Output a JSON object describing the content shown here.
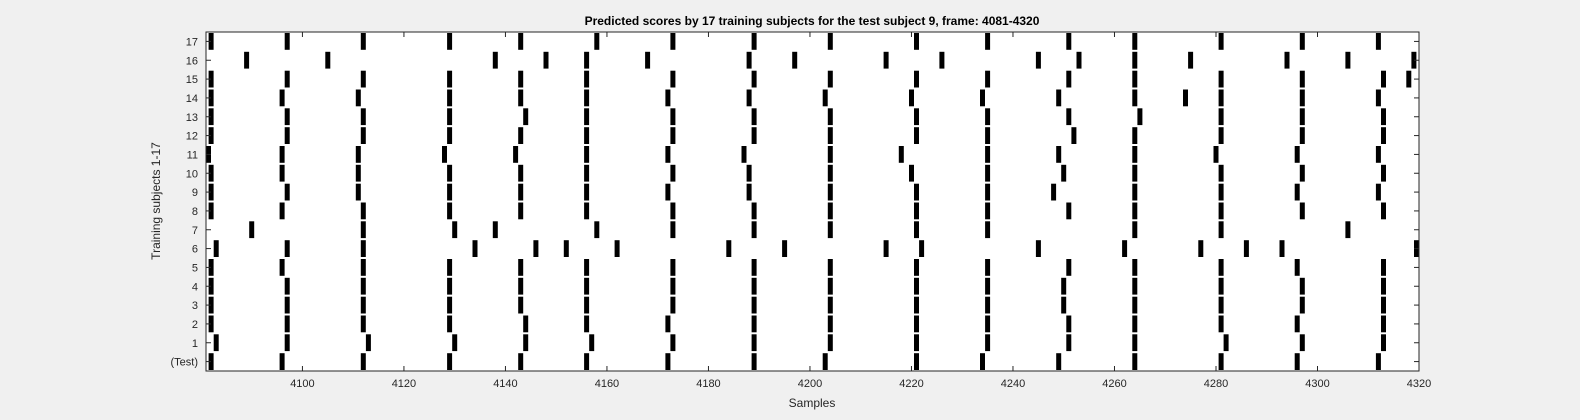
{
  "chart_data": {
    "type": "raster",
    "title": "Predicted scores by 17 training subjects for the test subject 9, frame: 4081-4320",
    "xlabel": "Samples",
    "ylabel": "Training subjects 1-17",
    "xlim": [
      4081,
      4320
    ],
    "x_ticks": [
      4100,
      4120,
      4140,
      4160,
      4180,
      4200,
      4220,
      4240,
      4260,
      4280,
      4300,
      4320
    ],
    "rows": [
      "(Test)",
      "1",
      "2",
      "3",
      "4",
      "5",
      "6",
      "7",
      "8",
      "9",
      "10",
      "11",
      "12",
      "13",
      "14",
      "15",
      "16",
      "17"
    ],
    "grid": false,
    "colors": {
      "background": "#f0f0f0",
      "axes": "#ffffff",
      "mark": "#000000",
      "text": "#262626"
    },
    "events": [
      [
        4082,
        4096,
        4112,
        4129,
        4143,
        4156,
        4172,
        4189,
        4203,
        4221,
        4234,
        4249,
        4264,
        4281,
        4296,
        4312
      ],
      [
        4083,
        4097,
        4113,
        4130,
        4144,
        4157,
        4173,
        4189,
        4204,
        4221,
        4235,
        4251,
        4264,
        4282,
        4297,
        4313
      ],
      [
        4082,
        4097,
        4112,
        4129,
        4144,
        4156,
        4172,
        4189,
        4204,
        4221,
        4235,
        4251,
        4264,
        4281,
        4296,
        4313
      ],
      [
        4082,
        4097,
        4112,
        4129,
        4143,
        4156,
        4173,
        4189,
        4204,
        4221,
        4235,
        4250,
        4264,
        4281,
        4297,
        4313
      ],
      [
        4082,
        4097,
        4112,
        4129,
        4143,
        4156,
        4173,
        4189,
        4204,
        4221,
        4235,
        4250,
        4264,
        4281,
        4297,
        4313
      ],
      [
        4082,
        4096,
        4112,
        4129,
        4143,
        4156,
        4173,
        4189,
        4204,
        4221,
        4235,
        4251,
        4264,
        4281,
        4296,
        4313
      ],
      [
        4083,
        4097,
        4112,
        4134,
        4146,
        4152,
        4162,
        4184,
        4195,
        4215,
        4222,
        4245,
        4262,
        4277,
        4286,
        4293,
        4320
      ],
      [
        4090,
        4112,
        4130,
        4138,
        4158,
        4173,
        4189,
        4204,
        4221,
        4235,
        4264,
        4281,
        4306
      ],
      [
        4082,
        4096,
        4112,
        4129,
        4143,
        4156,
        4173,
        4189,
        4204,
        4221,
        4235,
        4251,
        4264,
        4281,
        4297,
        4313
      ],
      [
        4082,
        4097,
        4111,
        4129,
        4143,
        4156,
        4172,
        4188,
        4204,
        4221,
        4235,
        4248,
        4264,
        4281,
        4296,
        4312
      ],
      [
        4082,
        4096,
        4111,
        4129,
        4143,
        4156,
        4173,
        4188,
        4204,
        4220,
        4235,
        4250,
        4264,
        4281,
        4297,
        4313
      ],
      [
        4081,
        4096,
        4111,
        4128,
        4142,
        4156,
        4172,
        4187,
        4204,
        4218,
        4235,
        4249,
        4264,
        4280,
        4296,
        4312
      ],
      [
        4082,
        4097,
        4112,
        4129,
        4143,
        4156,
        4173,
        4189,
        4204,
        4221,
        4235,
        4252,
        4264,
        4281,
        4297,
        4313
      ],
      [
        4082,
        4097,
        4112,
        4129,
        4144,
        4156,
        4173,
        4189,
        4204,
        4221,
        4235,
        4251,
        4265,
        4281,
        4297,
        4313
      ],
      [
        4082,
        4096,
        4111,
        4129,
        4143,
        4156,
        4172,
        4188,
        4203,
        4220,
        4234,
        4249,
        4264,
        4274,
        4281,
        4297,
        4312
      ],
      [
        4082,
        4097,
        4112,
        4129,
        4143,
        4156,
        4173,
        4189,
        4204,
        4221,
        4235,
        4251,
        4264,
        4281,
        4297,
        4313,
        4318
      ],
      [
        4089,
        4105,
        4138,
        4148,
        4156,
        4168,
        4188,
        4197,
        4215,
        4226,
        4245,
        4253,
        4264,
        4275,
        4294,
        4306,
        4319
      ],
      [
        4082,
        4097,
        4112,
        4129,
        4143,
        4158,
        4173,
        4189,
        4204,
        4221,
        4235,
        4251,
        4264,
        4281,
        4297,
        4312
      ]
    ]
  }
}
